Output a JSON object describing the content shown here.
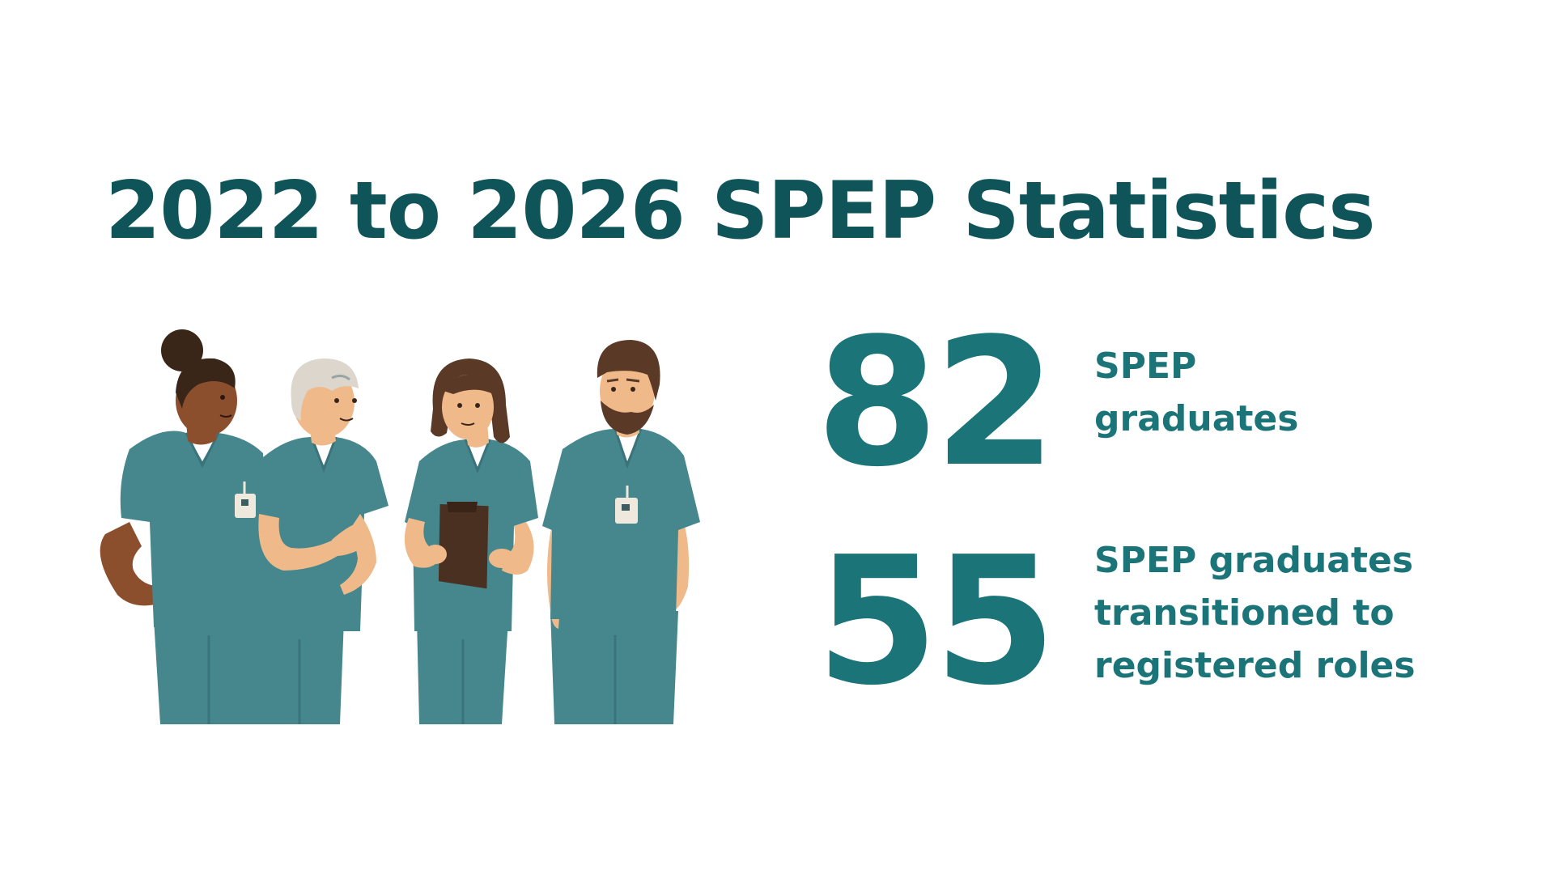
{
  "title": "2022 to 2026 SPEP Statistics",
  "stats": [
    {
      "number": "82",
      "label": "SPEP graduates"
    },
    {
      "number": "55",
      "label": "SPEP graduates transitioned to registered roles"
    }
  ],
  "colors": {
    "title": "#0f5458",
    "accent": "#1b7478",
    "scrubs": "#46878d",
    "background": "#ffffff"
  },
  "illustration": {
    "icon": "healthcare-team-illustration"
  }
}
